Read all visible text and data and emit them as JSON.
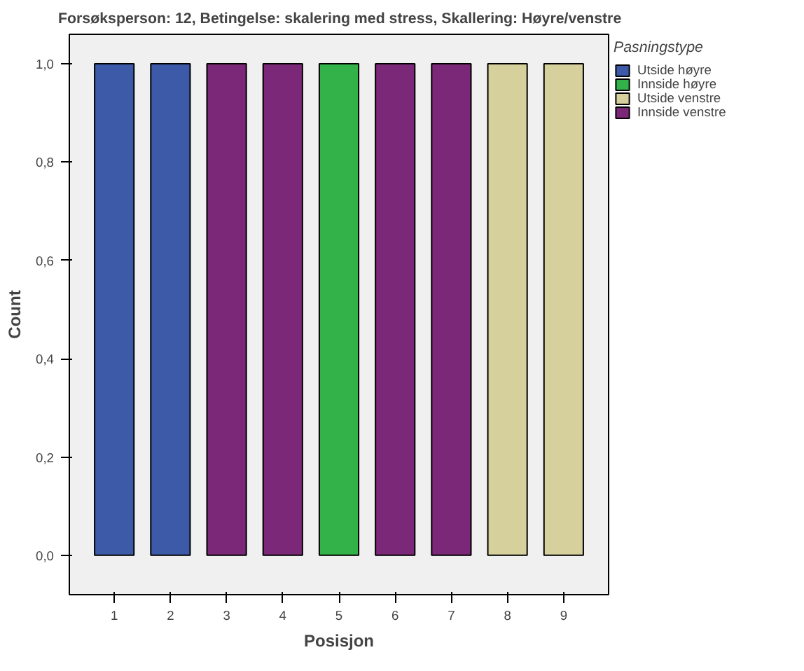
{
  "chart_data": {
    "type": "bar",
    "title": "Forsøksperson: 12, Betingelse: skalering med stress, Skallering: Høyre/venstre",
    "xlabel": "Posisjon",
    "ylabel": "Count",
    "legend_title": "Pasningstype",
    "categories": [
      "1",
      "2",
      "3",
      "4",
      "5",
      "6",
      "7",
      "8",
      "9"
    ],
    "stacked": true,
    "series": [
      {
        "name": "Utside høyre",
        "color": "#3c5aa8",
        "values": [
          1,
          1,
          null,
          null,
          null,
          null,
          null,
          null,
          null
        ]
      },
      {
        "name": "Innside høyre",
        "color": "#33b24a",
        "values": [
          null,
          null,
          null,
          null,
          1,
          null,
          null,
          null,
          null
        ]
      },
      {
        "name": "Utside venstre",
        "color": "#d6d19c",
        "values": [
          null,
          null,
          null,
          null,
          null,
          null,
          null,
          1,
          1
        ]
      },
      {
        "name": "Innside venstre",
        "color": "#7c2878",
        "values": [
          null,
          null,
          1,
          1,
          null,
          1,
          1,
          null,
          null
        ]
      }
    ],
    "ylim": [
      -0.08,
      1.06
    ],
    "yticks": [
      {
        "value": 0,
        "label": "0,0"
      },
      {
        "value": 0.2,
        "label": "0,2"
      },
      {
        "value": 0.4,
        "label": "0,4"
      },
      {
        "value": 0.6,
        "label": "0,6"
      },
      {
        "value": 0.8,
        "label": "0,8"
      },
      {
        "value": 1.0,
        "label": "1,0"
      }
    ],
    "grid": false,
    "legend": "right"
  }
}
